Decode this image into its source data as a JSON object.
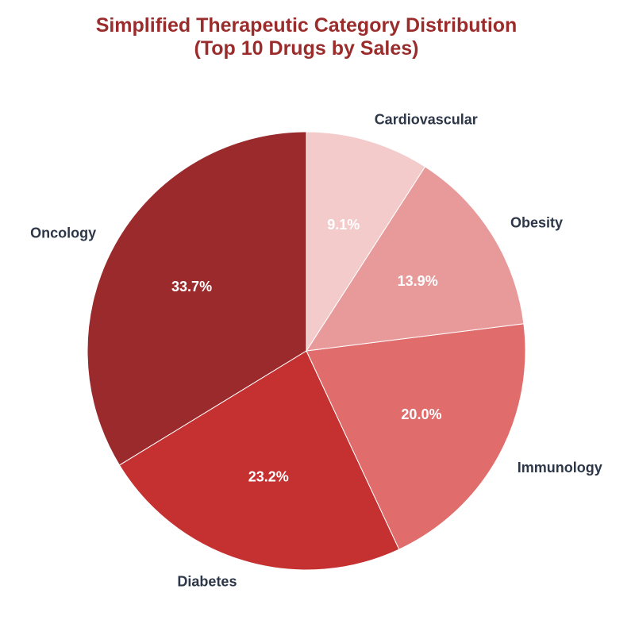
{
  "chart_data": {
    "type": "pie",
    "title_line1": "Simplified Therapeutic Category Distribution",
    "title_line2": "(Top 10 Drugs by Sales)",
    "start_angle": 90,
    "direction": "counterclockwise",
    "slices": [
      {
        "label": "Oncology",
        "value": 33.7,
        "pct_label": "33.7%",
        "color": "#9b2a2c"
      },
      {
        "label": "Diabetes",
        "value": 23.2,
        "pct_label": "23.2%",
        "color": "#c53030"
      },
      {
        "label": "Immunology",
        "value": 20.0,
        "pct_label": "20.0%",
        "color": "#e06c6c"
      },
      {
        "label": "Obesity",
        "value": 13.9,
        "pct_label": "13.9%",
        "color": "#e89a9a"
      },
      {
        "label": "Cardiovascular",
        "value": 9.1,
        "pct_label": "9.1%",
        "color": "#f4cbcb"
      }
    ]
  }
}
